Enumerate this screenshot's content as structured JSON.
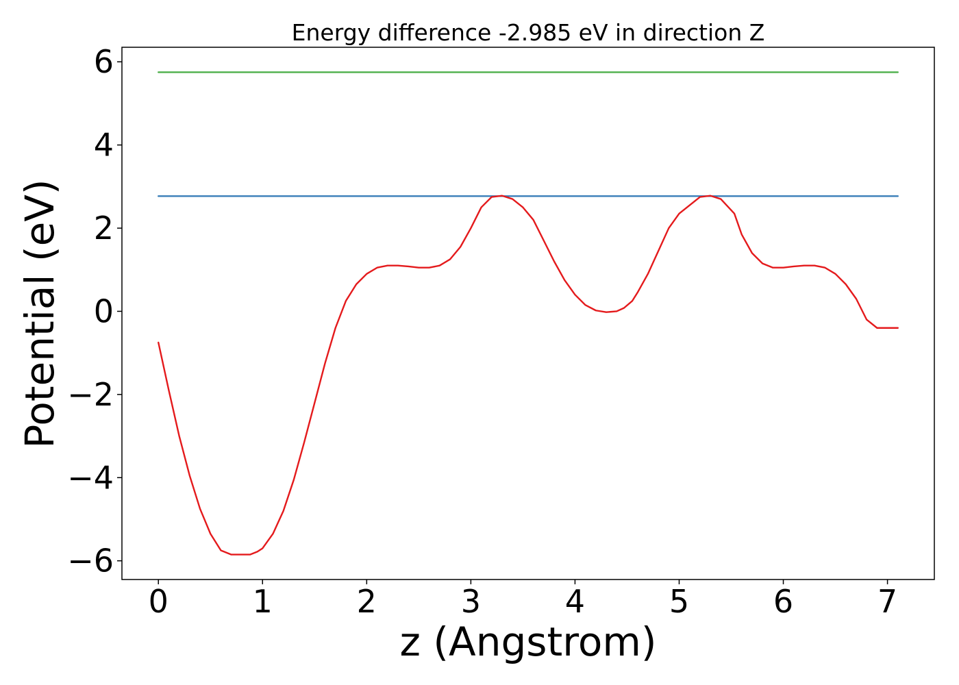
{
  "chart_data": {
    "type": "line",
    "title": "Energy difference -2.985 eV in direction Z",
    "xlabel": "z (Angstrom)",
    "ylabel": "Potential (eV)",
    "xlim": [
      -0.35,
      7.45
    ],
    "ylim": [
      -6.45,
      6.35
    ],
    "xticks": [
      0,
      1,
      2,
      3,
      4,
      5,
      6,
      7
    ],
    "xtick_labels": [
      "0",
      "1",
      "2",
      "3",
      "4",
      "5",
      "6",
      "7"
    ],
    "yticks": [
      6,
      4,
      2,
      0,
      -2,
      -4,
      -6
    ],
    "ytick_labels": [
      "6",
      "4",
      "2",
      "0",
      "−2",
      "−4",
      "−6"
    ],
    "grid": false,
    "legend": "none",
    "series": [
      {
        "color": "#e41a1c",
        "x": [
          0.0,
          0.1,
          0.2,
          0.3,
          0.4,
          0.5,
          0.6,
          0.7,
          0.8,
          0.88,
          0.95,
          1.0,
          1.1,
          1.2,
          1.3,
          1.4,
          1.5,
          1.6,
          1.7,
          1.8,
          1.9,
          2.0,
          2.1,
          2.2,
          2.3,
          2.4,
          2.5,
          2.6,
          2.7,
          2.8,
          2.9,
          3.0,
          3.1,
          3.2,
          3.3,
          3.4,
          3.5,
          3.6,
          3.7,
          3.8,
          3.9,
          4.0,
          4.1,
          4.2,
          4.3,
          4.4,
          4.47,
          4.55,
          4.6,
          4.7,
          4.8,
          4.9,
          5.0,
          5.1,
          5.2,
          5.3,
          5.4,
          5.53,
          5.6,
          5.7,
          5.8,
          5.9,
          6.0,
          6.1,
          6.2,
          6.3,
          6.4,
          6.5,
          6.6,
          6.7,
          6.8,
          6.9,
          7.0,
          7.1
        ],
        "y": [
          -0.75,
          -1.9,
          -3.0,
          -3.95,
          -4.75,
          -5.35,
          -5.75,
          -5.85,
          -5.85,
          -5.85,
          -5.78,
          -5.7,
          -5.35,
          -4.8,
          -4.05,
          -3.15,
          -2.2,
          -1.25,
          -0.4,
          0.25,
          0.65,
          0.9,
          1.05,
          1.1,
          1.1,
          1.08,
          1.05,
          1.05,
          1.1,
          1.25,
          1.55,
          2.0,
          2.5,
          2.75,
          2.78,
          2.7,
          2.5,
          2.2,
          1.7,
          1.2,
          0.75,
          0.4,
          0.15,
          0.02,
          -0.02,
          0.0,
          0.08,
          0.25,
          0.45,
          0.9,
          1.45,
          2.0,
          2.35,
          2.55,
          2.75,
          2.78,
          2.7,
          2.35,
          1.85,
          1.4,
          1.15,
          1.05,
          1.05,
          1.08,
          1.1,
          1.1,
          1.05,
          0.9,
          0.65,
          0.3,
          -0.2,
          -0.4,
          -0.4,
          -0.4
        ]
      },
      {
        "color": "#377eb8",
        "x": [
          0.0,
          7.1
        ],
        "y": [
          2.77,
          2.77
        ]
      },
      {
        "color": "#4daf4a",
        "x": [
          0.0,
          7.1
        ],
        "y": [
          5.75,
          5.75
        ]
      }
    ]
  }
}
